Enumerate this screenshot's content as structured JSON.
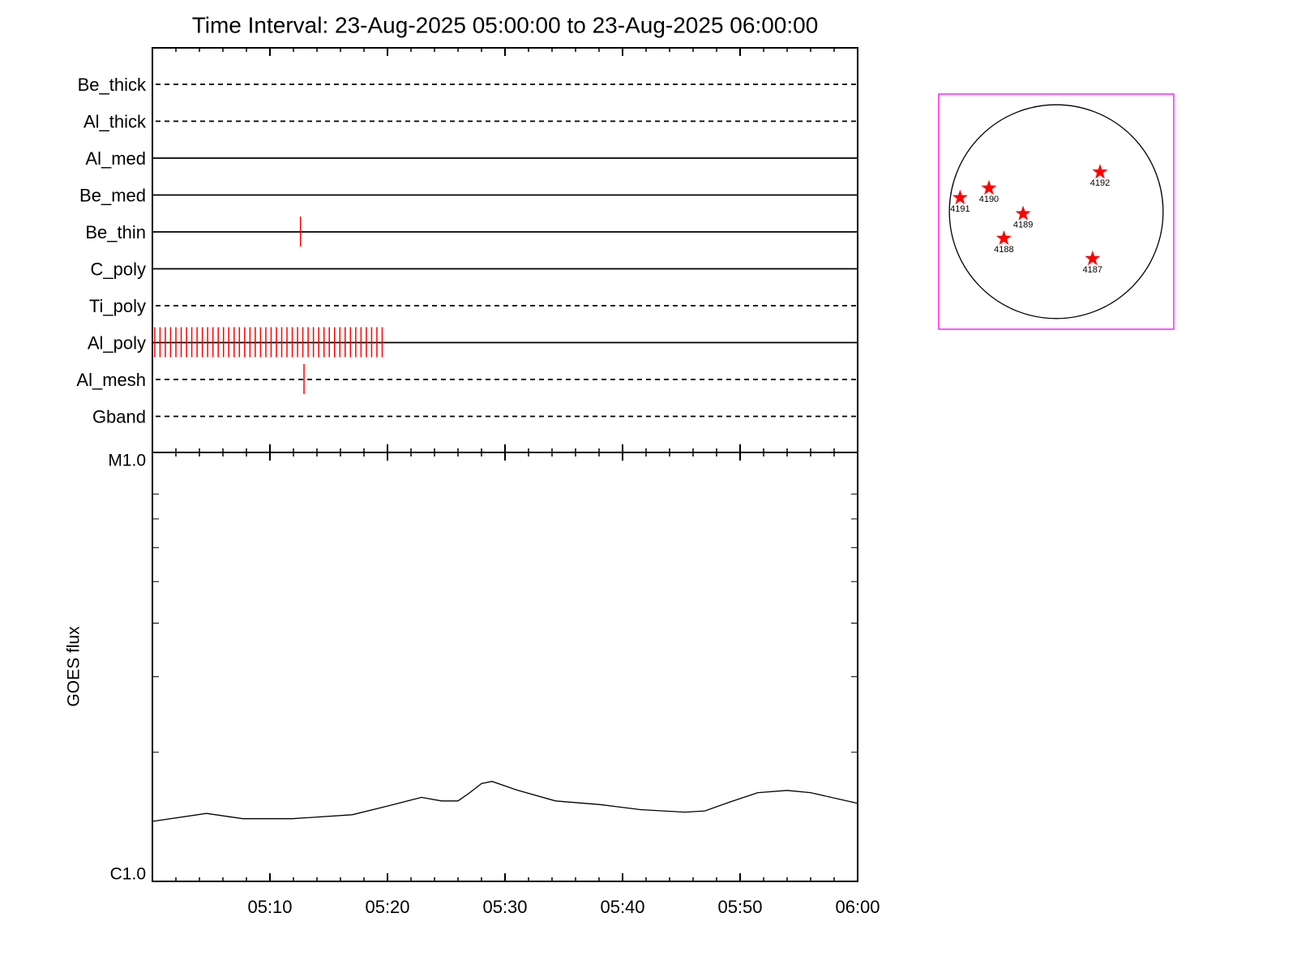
{
  "chart_data": [
    {
      "type": "timeline",
      "title": "Time Interval: 23-Aug-2025 05:00:00 to 23-Aug-2025 06:00:00",
      "xlim": [
        0,
        60
      ],
      "xticks": [
        10,
        20,
        30,
        40,
        50
      ],
      "xminorticks": [
        2,
        4,
        6,
        8,
        12,
        14,
        16,
        18,
        22,
        24,
        26,
        28,
        32,
        34,
        36,
        38,
        42,
        44,
        46,
        48,
        52,
        54,
        56,
        58
      ],
      "event_color": "#ff0000",
      "series": [
        {
          "name": "Be_thick",
          "style": "dashed",
          "events": []
        },
        {
          "name": "Al_thick",
          "style": "dashed",
          "events": []
        },
        {
          "name": "Al_med",
          "style": "solid",
          "events": []
        },
        {
          "name": "Be_med",
          "style": "solid",
          "events": []
        },
        {
          "name": "Be_thin",
          "style": "solid",
          "events": [
            12.6
          ]
        },
        {
          "name": "C_poly",
          "style": "solid",
          "events": []
        },
        {
          "name": "Ti_poly",
          "style": "dashed",
          "events": []
        },
        {
          "name": "Al_poly",
          "style": "solid",
          "events": [
            0.2,
            0.65,
            1.1,
            1.55,
            2.0,
            2.45,
            2.9,
            3.35,
            3.8,
            4.25,
            4.7,
            5.15,
            5.6,
            6.05,
            6.5,
            6.95,
            7.4,
            7.85,
            8.3,
            8.75,
            9.2,
            9.65,
            10.1,
            10.55,
            11.0,
            11.45,
            11.9,
            12.35,
            12.8,
            13.25,
            13.7,
            14.15,
            14.6,
            15.05,
            15.5,
            15.95,
            16.4,
            16.85,
            17.3,
            17.75,
            18.2,
            18.65,
            19.1,
            19.55
          ]
        },
        {
          "name": "Al_mesh",
          "style": "dashed",
          "events": [
            12.9
          ]
        },
        {
          "name": "Gband",
          "style": "dashed",
          "events": []
        }
      ]
    },
    {
      "type": "line",
      "y_label": "GOES flux",
      "log_scale": true,
      "color": "#000000",
      "xlim": [
        0,
        60
      ],
      "xticks": [
        {
          "value": 10,
          "label": "05:10"
        },
        {
          "value": 20,
          "label": "05:20"
        },
        {
          "value": 30,
          "label": "05:30"
        },
        {
          "value": 40,
          "label": "05:40"
        },
        {
          "value": 50,
          "label": "05:50"
        },
        {
          "value": 60,
          "label": "06:00"
        }
      ],
      "xminorticks": [
        2,
        4,
        6,
        8,
        12,
        14,
        16,
        18,
        22,
        24,
        26,
        28,
        32,
        34,
        36,
        38,
        42,
        44,
        46,
        48,
        52,
        54,
        56,
        58
      ],
      "ylim": [
        1e-06,
        1e-05
      ],
      "yticks": [
        {
          "value": 1e-06,
          "label": "C1.0"
        },
        {
          "value": 1e-05,
          "label": "M1.0"
        }
      ],
      "yminorticks": [
        2e-06,
        3e-06,
        4e-06,
        5e-06,
        6e-06,
        7e-06,
        8e-06
      ],
      "x": [
        0,
        4.6,
        7.7,
        11.9,
        17.0,
        20.1,
        22.9,
        24.6,
        26.0,
        27.0,
        28.0,
        28.9,
        31.1,
        34.3,
        38.1,
        41.5,
        45.3,
        47.0,
        49.1,
        51.5,
        54.0,
        56.0,
        60
      ],
      "values": [
        1.38e-06,
        1.44e-06,
        1.4e-06,
        1.4e-06,
        1.43e-06,
        1.5e-06,
        1.57e-06,
        1.54e-06,
        1.54e-06,
        1.61e-06,
        1.69e-06,
        1.71e-06,
        1.63e-06,
        1.54e-06,
        1.51e-06,
        1.47e-06,
        1.45e-06,
        1.46e-06,
        1.53e-06,
        1.61e-06,
        1.63e-06,
        1.61e-06,
        1.52e-06
      ]
    },
    {
      "type": "disk",
      "xlim": [
        -1.1,
        1.1
      ],
      "ylim": [
        -1.1,
        1.1
      ],
      "color": "#ff0000",
      "frame_color": "#ff00ff",
      "regions": [
        {
          "label": "4192",
          "x": 0.41,
          "y": 0.37
        },
        {
          "label": "4190",
          "x": -0.63,
          "y": 0.22
        },
        {
          "label": "4191",
          "x": -0.9,
          "y": 0.13
        },
        {
          "label": "4189",
          "x": -0.31,
          "y": -0.02
        },
        {
          "label": "4188",
          "x": -0.49,
          "y": -0.25
        },
        {
          "label": "4187",
          "x": 0.34,
          "y": -0.44
        }
      ]
    }
  ]
}
